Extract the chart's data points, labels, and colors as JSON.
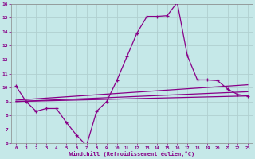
{
  "xlabel": "Windchill (Refroidissement éolien,°C)",
  "bg_color": "#c5e8e8",
  "line_color": "#880088",
  "grid_color": "#b0d0d0",
  "xlim": [
    -0.5,
    23.5
  ],
  "ylim": [
    6,
    16
  ],
  "yticks": [
    6,
    7,
    8,
    9,
    10,
    11,
    12,
    13,
    14,
    15,
    16
  ],
  "xticks": [
    0,
    1,
    2,
    3,
    4,
    5,
    6,
    7,
    8,
    9,
    10,
    11,
    12,
    13,
    14,
    15,
    16,
    17,
    18,
    19,
    20,
    21,
    22,
    23
  ],
  "line1_x": [
    0,
    1,
    2,
    3,
    4,
    5,
    6,
    7,
    8,
    9,
    10,
    11,
    12,
    13,
    14,
    15,
    16,
    17,
    18,
    19,
    20,
    21,
    22,
    23
  ],
  "line1_y": [
    10.1,
    9.0,
    8.3,
    8.5,
    8.5,
    7.5,
    6.6,
    5.85,
    8.3,
    9.0,
    10.5,
    12.2,
    13.9,
    15.1,
    15.1,
    15.15,
    16.1,
    12.3,
    10.55,
    10.55,
    10.5,
    9.9,
    9.5,
    9.4
  ],
  "line2_x": [
    0,
    23
  ],
  "line2_y": [
    9.0,
    9.4
  ],
  "line3_x": [
    0,
    23
  ],
  "line3_y": [
    9.0,
    9.7
  ],
  "line4_x": [
    0,
    23
  ],
  "line4_y": [
    9.1,
    10.2
  ]
}
